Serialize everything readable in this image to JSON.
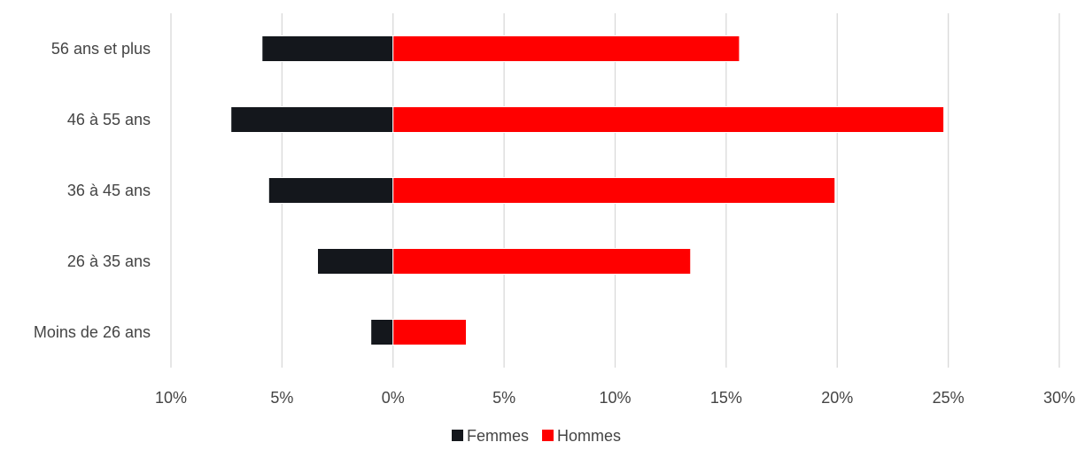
{
  "chart_data": {
    "type": "bar",
    "orientation": "horizontal",
    "stacked": "diverging",
    "categories": [
      "56 ans et plus",
      "46 à 55 ans",
      "36 à 45 ans",
      "26 à 35 ans",
      "Moins de 26 ans"
    ],
    "series": [
      {
        "name": "Femmes",
        "color": "#14171c",
        "values": [
          -5.9,
          -7.3,
          -5.6,
          -3.4,
          -1.0
        ]
      },
      {
        "name": "Hommes",
        "color": "#ff0000",
        "values": [
          15.6,
          24.8,
          19.9,
          13.4,
          3.3
        ]
      }
    ],
    "xlim": [
      -10,
      30
    ],
    "xticks": [
      -10,
      -5,
      0,
      5,
      10,
      15,
      20,
      25,
      30
    ],
    "xtick_labels": [
      "10%",
      "5%",
      "0%",
      "5%",
      "10%",
      "15%",
      "20%",
      "25%",
      "30%"
    ],
    "grid": "vertical",
    "legend": "bottom-center"
  }
}
